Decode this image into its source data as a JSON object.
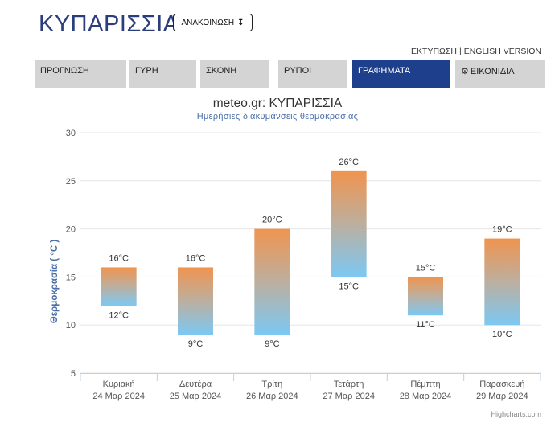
{
  "header": {
    "title": "ΚΥΠΑΡΙΣΣΙΑ",
    "announce_label": "ΑΝΑΚΟΙΝΩΣΗ",
    "announce_icon": "download-arrow-icon"
  },
  "top_links": {
    "print": "ΕΚΤΥΠΩΣΗ",
    "separator": "|",
    "english": "ENGLISH VERSION"
  },
  "tabs": [
    {
      "label": "ΠΡΟΓΝΩΣΗ",
      "active": false
    },
    {
      "label": "ΓΥΡΗ",
      "active": false
    },
    {
      "label": "ΣΚΟΝΗ",
      "active": false
    },
    {
      "label": "ΡΥΠΟΙ",
      "active": false
    },
    {
      "label": "ΓΡΑΦΗΜΑΤΑ",
      "active": true
    },
    {
      "label": "ΕΙΚΟΝΙΔΙΑ",
      "active": false,
      "icon": "gear-icon"
    }
  ],
  "colors": {
    "brand": "#2c3d7c",
    "active_tab": "#1e3f8c",
    "bar_top": "#f0944f",
    "bar_bottom": "#7cc8f3"
  },
  "chart_data": {
    "type": "columnrange",
    "title": "meteo.gr: ΚΥΠΑΡΙΣΣΙΑ",
    "subtitle": "Ημερήσιες διακυμάνσεις θερμοκρασίας",
    "ylabel": "Θερμοκρασία ( °C )",
    "ylim": [
      5,
      30
    ],
    "yticks": [
      5,
      10,
      15,
      20,
      25,
      30
    ],
    "grid": true,
    "unit": "°C",
    "categories": [
      [
        "Κυριακή",
        "24 Μαρ 2024"
      ],
      [
        "Δευτέρα",
        "25 Μαρ 2024"
      ],
      [
        "Τρίτη",
        "26 Μαρ 2024"
      ],
      [
        "Τετάρτη",
        "27 Μαρ 2024"
      ],
      [
        "Πέμπτη",
        "28 Μαρ 2024"
      ],
      [
        "Παρασκευή",
        "29 Μαρ 2024"
      ]
    ],
    "series": [
      {
        "low": [
          12,
          9,
          9,
          15,
          11,
          10
        ],
        "high": [
          16,
          16,
          20,
          26,
          15,
          19
        ]
      }
    ]
  },
  "credits": "Highcharts.com"
}
